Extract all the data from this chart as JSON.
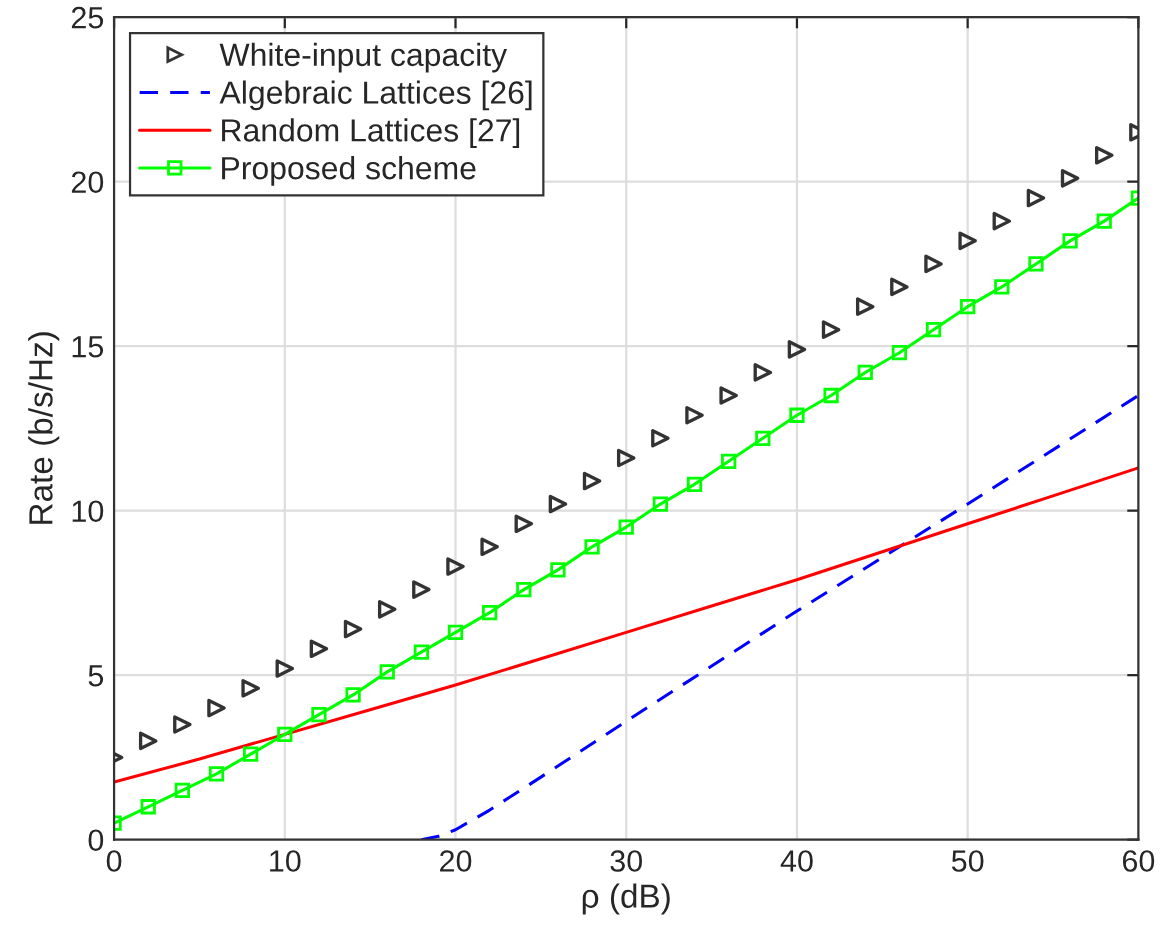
{
  "chart_data": {
    "type": "line",
    "xlabel": "ρ (dB)",
    "ylabel": "Rate (b/s/Hz)",
    "xlim": [
      0,
      60
    ],
    "ylim": [
      0,
      25
    ],
    "xticks": [
      0,
      10,
      20,
      30,
      40,
      50,
      60
    ],
    "yticks": [
      0,
      5,
      10,
      15,
      20,
      25
    ],
    "grid": true,
    "legend": "top left",
    "series": [
      {
        "name": "White-input capacity",
        "type": "scatter",
        "marker": "triangle",
        "color": "#333333",
        "x": [
          0,
          2,
          4,
          6,
          8,
          10,
          12,
          14,
          16,
          18,
          20,
          22,
          24,
          26,
          28,
          30,
          32,
          34,
          36,
          38,
          40,
          42,
          44,
          46,
          48,
          50,
          52,
          54,
          56,
          58,
          60
        ],
        "values": [
          2.5,
          3.0,
          3.5,
          4.0,
          4.6,
          5.2,
          5.8,
          6.4,
          7.0,
          7.6,
          8.3,
          8.9,
          9.6,
          10.2,
          10.9,
          11.6,
          12.2,
          12.9,
          13.5,
          14.2,
          14.9,
          15.5,
          16.2,
          16.8,
          17.5,
          18.2,
          18.8,
          19.5,
          20.1,
          20.8,
          21.5
        ]
      },
      {
        "name": "Algebraic Lattices [26]",
        "line_style": "dashed",
        "marker": "none",
        "color": "#0000ff",
        "x": [
          18,
          19,
          20,
          22,
          25,
          30,
          40,
          50,
          60
        ],
        "values": [
          0,
          0.1,
          0.3,
          0.9,
          1.9,
          3.6,
          6.95,
          10.2,
          13.5
        ]
      },
      {
        "name": "Random Lattices [27]",
        "line_style": "solid",
        "marker": "none",
        "color": "#ff0000",
        "x": [
          0,
          5,
          10,
          15,
          20,
          25,
          30,
          35,
          40,
          45,
          50,
          55,
          60
        ],
        "values": [
          1.75,
          2.45,
          3.2,
          3.95,
          4.7,
          5.5,
          6.3,
          7.1,
          7.9,
          8.75,
          9.6,
          10.45,
          11.3
        ]
      },
      {
        "name": "Proposed scheme",
        "line_style": "solid",
        "marker": "square",
        "color": "#00ff00",
        "x": [
          0,
          2,
          4,
          6,
          8,
          10,
          12,
          14,
          16,
          18,
          20,
          22,
          24,
          26,
          28,
          30,
          32,
          34,
          36,
          38,
          40,
          42,
          44,
          46,
          48,
          50,
          52,
          54,
          56,
          58,
          60
        ],
        "values": [
          0.5,
          1.0,
          1.5,
          2.0,
          2.6,
          3.2,
          3.8,
          4.4,
          5.1,
          5.7,
          6.3,
          6.9,
          7.6,
          8.2,
          8.9,
          9.5,
          10.2,
          10.8,
          11.5,
          12.2,
          12.9,
          13.5,
          14.2,
          14.8,
          15.5,
          16.2,
          16.8,
          17.5,
          18.2,
          18.8,
          19.5
        ]
      }
    ]
  }
}
